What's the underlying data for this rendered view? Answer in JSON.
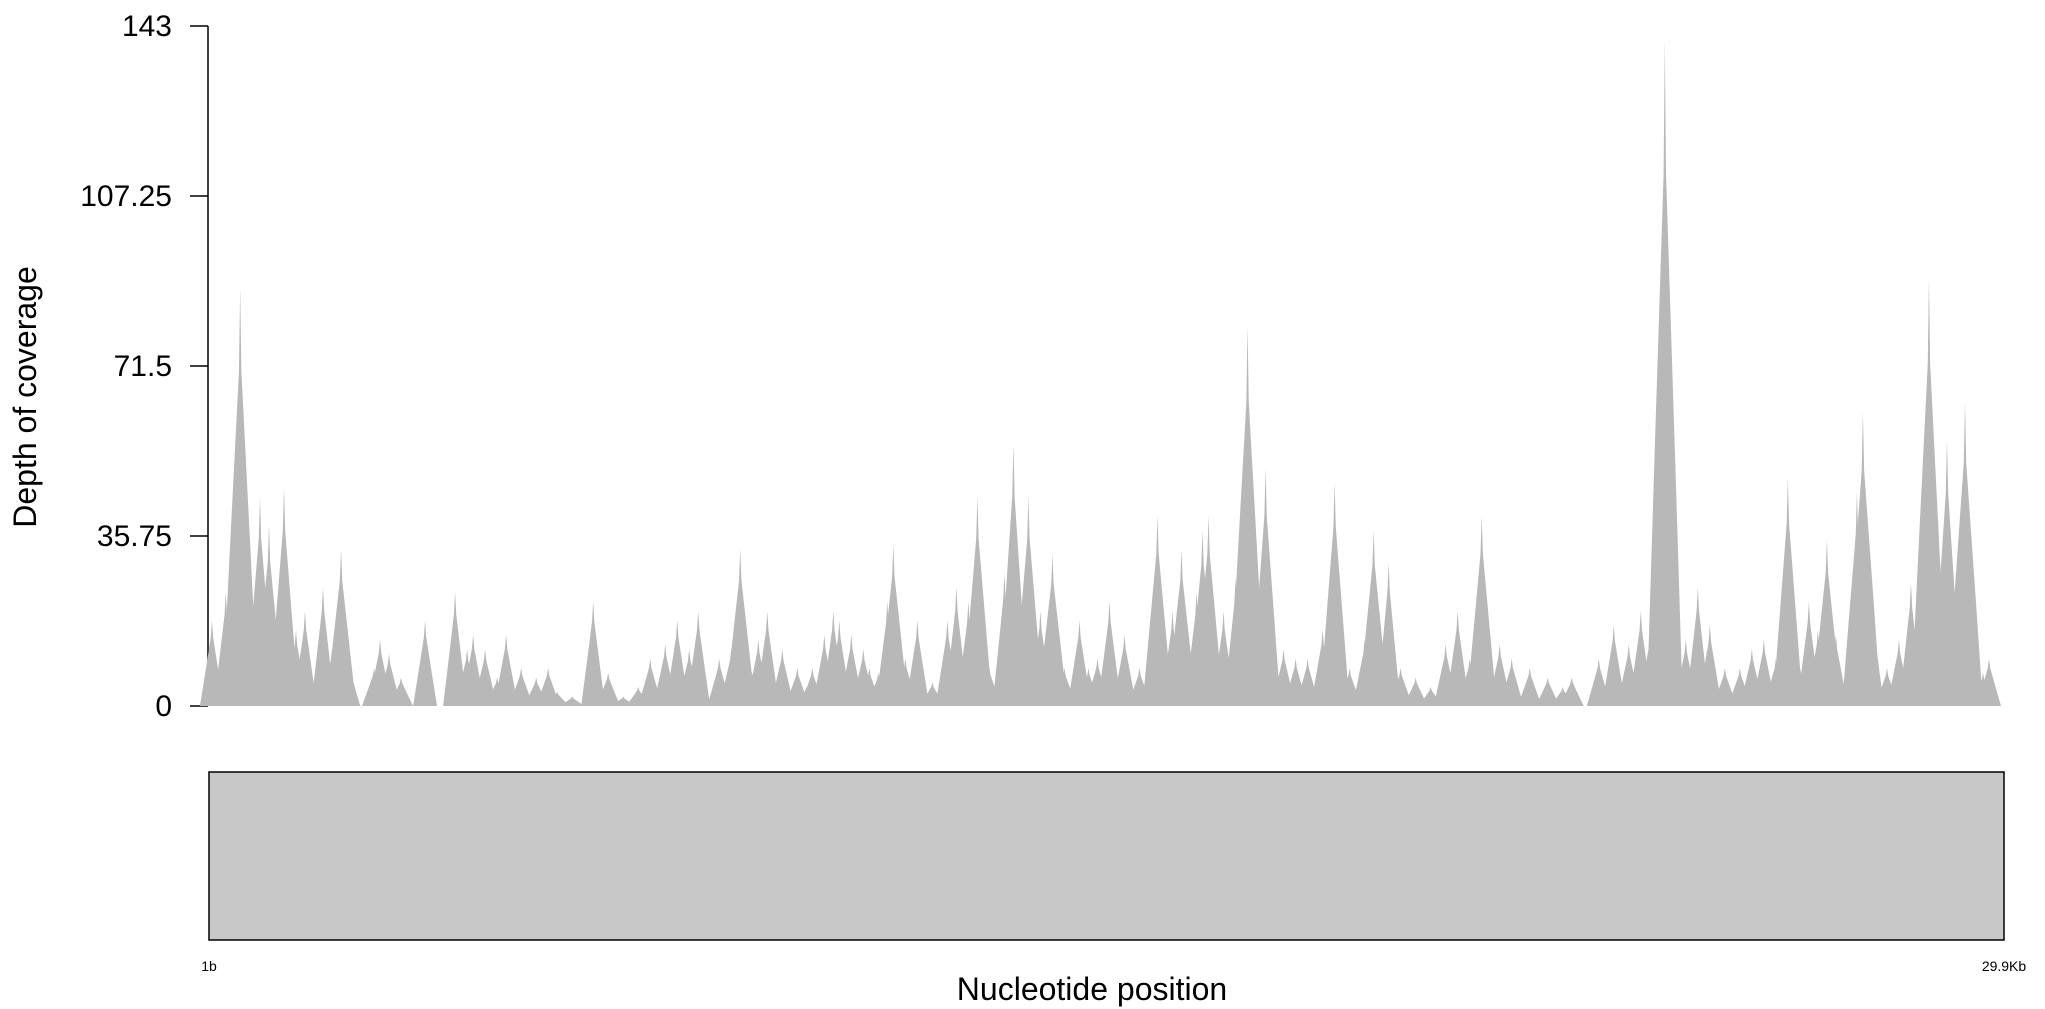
{
  "chart_data": {
    "type": "area",
    "title": "",
    "ylabel": "Depth of coverage",
    "xlabel": "Nucleotide position",
    "ylim": [
      0,
      143
    ],
    "y_ticks": [
      0,
      35.75,
      71.5,
      107.25,
      143
    ],
    "y_tick_labels": [
      "0",
      "35.75",
      "71.5",
      "107.25",
      "143"
    ],
    "xlim": [
      1,
      29900
    ],
    "x_tick_labels": [
      "1b",
      "29.9Kb"
    ],
    "grid": false,
    "fill_color": "#b8b8b8",
    "genome_bar_color": "#c8c8c8",
    "peaks": [
      [
        50,
        18
      ],
      [
        280,
        24
      ],
      [
        420,
        26
      ],
      [
        520,
        88
      ],
      [
        600,
        12
      ],
      [
        850,
        44
      ],
      [
        1000,
        38
      ],
      [
        1250,
        46
      ],
      [
        1450,
        16
      ],
      [
        1600,
        20
      ],
      [
        1900,
        25
      ],
      [
        2050,
        12
      ],
      [
        2200,
        33
      ],
      [
        2320,
        10
      ],
      [
        2750,
        8
      ],
      [
        2850,
        14
      ],
      [
        3000,
        11
      ],
      [
        3200,
        6
      ],
      [
        3600,
        18
      ],
      [
        4100,
        24
      ],
      [
        4300,
        12
      ],
      [
        4400,
        15
      ],
      [
        4600,
        12
      ],
      [
        4800,
        6
      ],
      [
        4950,
        15
      ],
      [
        5200,
        8
      ],
      [
        5450,
        6
      ],
      [
        5650,
        8
      ],
      [
        5800,
        3
      ],
      [
        6050,
        2
      ],
      [
        6400,
        22
      ],
      [
        6650,
        7
      ],
      [
        6900,
        2
      ],
      [
        7150,
        4
      ],
      [
        7350,
        10
      ],
      [
        7600,
        13
      ],
      [
        7800,
        18
      ],
      [
        8000,
        12
      ],
      [
        8150,
        20
      ],
      [
        8500,
        10
      ],
      [
        8700,
        12
      ],
      [
        8850,
        33
      ],
      [
        9000,
        10
      ],
      [
        9150,
        14
      ],
      [
        9300,
        20
      ],
      [
        9550,
        12
      ],
      [
        9800,
        8
      ],
      [
        9950,
        4
      ],
      [
        10050,
        8
      ],
      [
        10250,
        15
      ],
      [
        10400,
        20
      ],
      [
        10500,
        18
      ],
      [
        10700,
        15
      ],
      [
        10900,
        12
      ],
      [
        11000,
        8
      ],
      [
        11150,
        7
      ],
      [
        11300,
        22
      ],
      [
        11400,
        34
      ],
      [
        11600,
        10
      ],
      [
        11800,
        18
      ],
      [
        12050,
        5
      ],
      [
        12300,
        18
      ],
      [
        12450,
        25
      ],
      [
        12650,
        22
      ],
      [
        12800,
        44
      ],
      [
        13000,
        8
      ],
      [
        13250,
        28
      ],
      [
        13400,
        55
      ],
      [
        13650,
        44
      ],
      [
        13850,
        20
      ],
      [
        14050,
        32
      ],
      [
        14250,
        8
      ],
      [
        14500,
        18
      ],
      [
        14650,
        8
      ],
      [
        14800,
        10
      ],
      [
        15000,
        22
      ],
      [
        15250,
        15
      ],
      [
        15500,
        8
      ],
      [
        15800,
        40
      ],
      [
        16050,
        20
      ],
      [
        16200,
        33
      ],
      [
        16450,
        24
      ],
      [
        16550,
        37
      ],
      [
        16650,
        40
      ],
      [
        16900,
        20
      ],
      [
        17100,
        27
      ],
      [
        17300,
        80
      ],
      [
        17600,
        50
      ],
      [
        17900,
        12
      ],
      [
        18100,
        10
      ],
      [
        18300,
        10
      ],
      [
        18550,
        16
      ],
      [
        18750,
        47
      ],
      [
        19000,
        8
      ],
      [
        19250,
        14
      ],
      [
        19400,
        37
      ],
      [
        19650,
        30
      ],
      [
        19850,
        8
      ],
      [
        20100,
        6
      ],
      [
        20350,
        4
      ],
      [
        20600,
        13
      ],
      [
        20800,
        20
      ],
      [
        21000,
        10
      ],
      [
        21200,
        40
      ],
      [
        21500,
        13
      ],
      [
        21700,
        10
      ],
      [
        22000,
        8
      ],
      [
        22300,
        6
      ],
      [
        22550,
        4
      ],
      [
        22700,
        6
      ],
      [
        23150,
        10
      ],
      [
        23400,
        17
      ],
      [
        23650,
        13
      ],
      [
        23850,
        20
      ],
      [
        24000,
        15
      ],
      [
        24150,
        24
      ],
      [
        24250,
        140
      ],
      [
        24400,
        12
      ],
      [
        24600,
        14
      ],
      [
        24800,
        25
      ],
      [
        25000,
        17
      ],
      [
        25250,
        8
      ],
      [
        25500,
        8
      ],
      [
        25700,
        12
      ],
      [
        25900,
        14
      ],
      [
        26100,
        10
      ],
      [
        26300,
        48
      ],
      [
        26450,
        12
      ],
      [
        26650,
        22
      ],
      [
        26800,
        16
      ],
      [
        26950,
        35
      ],
      [
        27100,
        15
      ],
      [
        27300,
        8
      ],
      [
        27450,
        45
      ],
      [
        27550,
        62
      ],
      [
        27700,
        22
      ],
      [
        27950,
        8
      ],
      [
        28150,
        14
      ],
      [
        28350,
        26
      ],
      [
        28500,
        30
      ],
      [
        28650,
        90
      ],
      [
        28800,
        40
      ],
      [
        28950,
        56
      ],
      [
        29100,
        28
      ],
      [
        29250,
        64
      ],
      [
        29400,
        8
      ],
      [
        29550,
        7
      ],
      [
        29650,
        10
      ]
    ]
  }
}
